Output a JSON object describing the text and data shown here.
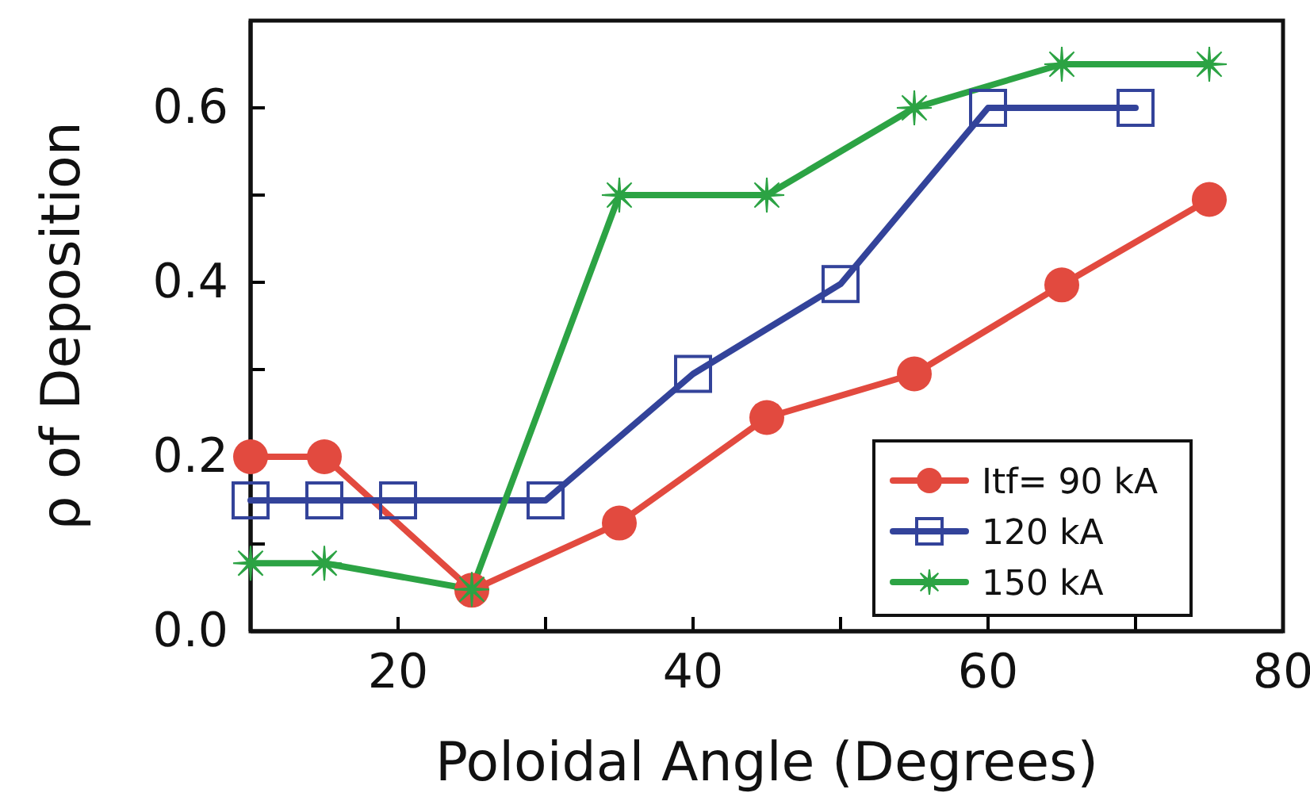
{
  "chart_data": {
    "type": "line",
    "xlabel": "Poloidal Angle (Degrees)",
    "ylabel": "ρ of Deposition",
    "xlim": [
      10,
      80
    ],
    "ylim": [
      0,
      0.7
    ],
    "xticks": [
      {
        "value": 20,
        "label": "20"
      },
      {
        "value": 30,
        "label": null
      },
      {
        "value": 40,
        "label": "40"
      },
      {
        "value": 50,
        "label": null
      },
      {
        "value": 60,
        "label": "60"
      },
      {
        "value": 70,
        "label": null
      },
      {
        "value": 80,
        "label": "80"
      }
    ],
    "yticks": [
      {
        "value": 0,
        "label": "0.0"
      },
      {
        "value": 0.1,
        "label": null
      },
      {
        "value": 0.2,
        "label": "0.2"
      },
      {
        "value": 0.3,
        "label": null
      },
      {
        "value": 0.4,
        "label": "0.4"
      },
      {
        "value": 0.5,
        "label": null
      },
      {
        "value": 0.6,
        "label": "0.6"
      }
    ],
    "grid": false,
    "legend": "bottom right",
    "series": [
      {
        "name": "Itf= 90 kA",
        "color": "#e24a3f",
        "marker": "circle",
        "x": [
          10,
          15,
          25,
          35,
          45,
          55,
          65,
          75
        ],
        "values": [
          0.2,
          0.2,
          0.047,
          0.124,
          0.245,
          0.295,
          0.397,
          0.495
        ]
      },
      {
        "name": "120 kA",
        "color": "#33439a",
        "marker": "square",
        "x": [
          10,
          15,
          20,
          30,
          40,
          50,
          60,
          70
        ],
        "values": [
          0.15,
          0.15,
          0.15,
          0.15,
          0.295,
          0.398,
          0.6,
          0.6
        ]
      },
      {
        "name": "150 kA",
        "color": "#2ca344",
        "marker": "cross",
        "x": [
          10,
          15,
          25,
          35,
          45,
          55,
          65,
          75
        ],
        "values": [
          0.078,
          0.078,
          0.048,
          0.5,
          0.5,
          0.6,
          0.65,
          0.65
        ]
      }
    ]
  }
}
